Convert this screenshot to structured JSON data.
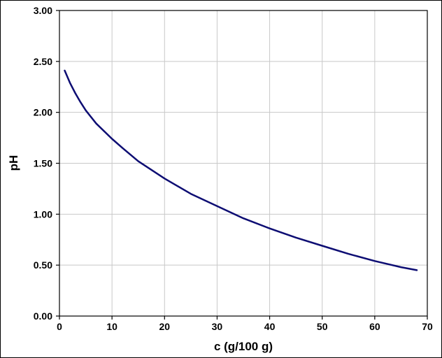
{
  "chart_data": {
    "type": "line",
    "xlabel": "c (g/100 g)",
    "ylabel": "pH",
    "xlim": [
      0,
      70
    ],
    "ylim": [
      0,
      3
    ],
    "x_ticks": [
      "0",
      "10",
      "20",
      "30",
      "40",
      "50",
      "60",
      "70"
    ],
    "y_ticks": [
      "0.00",
      "0.50",
      "1.00",
      "1.50",
      "2.00",
      "2.50",
      "3.00"
    ],
    "grid": true,
    "legend": "none",
    "series": [
      {
        "color": "#0d0d73",
        "x": [
          1,
          2,
          3,
          4,
          5,
          7,
          10,
          12,
          15,
          20,
          25,
          30,
          35,
          40,
          45,
          50,
          55,
          60,
          65,
          68
        ],
        "y": [
          2.41,
          2.29,
          2.19,
          2.1,
          2.02,
          1.89,
          1.74,
          1.65,
          1.52,
          1.35,
          1.2,
          1.08,
          0.96,
          0.86,
          0.77,
          0.69,
          0.61,
          0.54,
          0.48,
          0.45
        ]
      }
    ]
  }
}
